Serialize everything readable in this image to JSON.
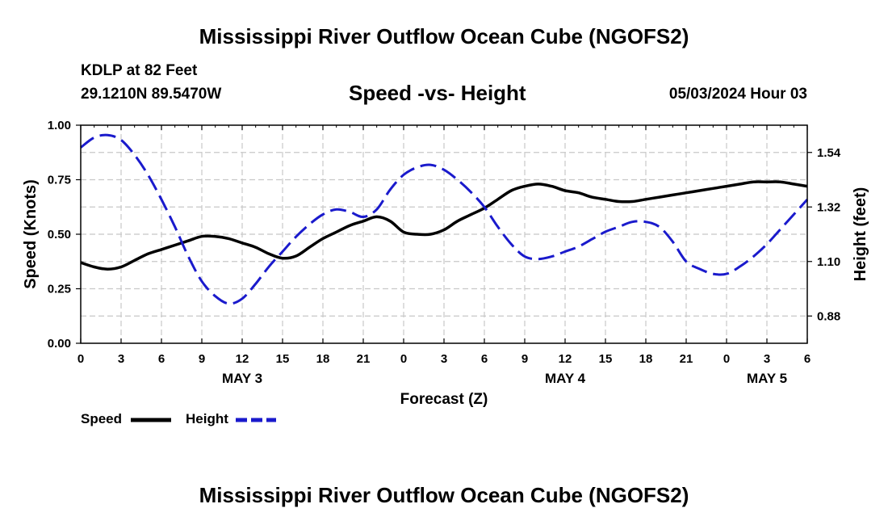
{
  "header": {
    "title": "Mississippi River Outflow Ocean Cube (NGOFS2)",
    "station": "KDLP at 82 Feet",
    "location": "29.1210N  89.5470W",
    "chart_title": "Speed -vs- Height",
    "date": "05/03/2024 Hour 03"
  },
  "footer": {
    "title": "Mississippi River Outflow Ocean Cube (NGOFS2)"
  },
  "chart_data": {
    "type": "line",
    "title": "Speed -vs- Height",
    "xlabel": "Forecast (Z)",
    "ylabel": "Speed (Knots)",
    "y2label": "Height (feet)",
    "x_range_hours": [
      0,
      54
    ],
    "x_tick_hours": [
      0,
      3,
      6,
      9,
      12,
      15,
      18,
      21,
      24,
      27,
      30,
      33,
      36,
      39,
      42,
      45,
      48,
      51,
      54
    ],
    "x_tick_labels": [
      "0",
      "3",
      "6",
      "9",
      "12",
      "15",
      "18",
      "21",
      "0",
      "3",
      "6",
      "9",
      "12",
      "15",
      "18",
      "21",
      "0",
      "3",
      "6"
    ],
    "day_labels": [
      {
        "hour": 12,
        "label": "MAY 3"
      },
      {
        "hour": 36,
        "label": "MAY 4"
      },
      {
        "hour": 51,
        "label": "MAY 5"
      }
    ],
    "ylim": [
      0,
      1
    ],
    "y_ticks": [
      0,
      0.25,
      0.5,
      0.75,
      1.0
    ],
    "y_tick_labels": [
      "0.00",
      "0.25",
      "0.50",
      "0.75",
      "1.00"
    ],
    "y2lim": [
      0.77,
      1.65
    ],
    "y2_ticks": [
      0.88,
      1.1,
      1.32,
      1.54
    ],
    "y2_tick_labels": [
      "0.88",
      "1.10",
      "1.32",
      "1.54"
    ],
    "series": [
      {
        "name": "Speed",
        "axis": "left",
        "color": "#000000",
        "dash": "solid",
        "x": [
          0,
          1,
          2,
          3,
          4,
          5,
          6,
          7,
          8,
          9,
          10,
          11,
          12,
          13,
          14,
          15,
          16,
          17,
          18,
          19,
          20,
          21,
          22,
          23,
          24,
          25,
          26,
          27,
          28,
          29,
          30,
          31,
          32,
          33,
          34,
          35,
          36,
          37,
          38,
          39,
          40,
          41,
          42,
          43,
          44,
          45,
          46,
          47,
          48,
          49,
          50,
          51,
          52,
          53,
          54
        ],
        "values": [
          0.37,
          0.35,
          0.34,
          0.35,
          0.38,
          0.41,
          0.43,
          0.45,
          0.47,
          0.49,
          0.49,
          0.48,
          0.46,
          0.44,
          0.41,
          0.39,
          0.4,
          0.44,
          0.48,
          0.51,
          0.54,
          0.56,
          0.58,
          0.56,
          0.51,
          0.5,
          0.5,
          0.52,
          0.56,
          0.59,
          0.62,
          0.66,
          0.7,
          0.72,
          0.73,
          0.72,
          0.7,
          0.69,
          0.67,
          0.66,
          0.65,
          0.65,
          0.66,
          0.67,
          0.68,
          0.69,
          0.7,
          0.71,
          0.72,
          0.73,
          0.74,
          0.74,
          0.74,
          0.73,
          0.72
        ]
      },
      {
        "name": "Height",
        "axis": "right",
        "color": "#1a1acc",
        "dash": "dashed",
        "x": [
          0,
          1,
          2,
          3,
          4,
          5,
          6,
          7,
          8,
          9,
          10,
          11,
          12,
          13,
          14,
          15,
          16,
          17,
          18,
          19,
          20,
          21,
          22,
          23,
          24,
          25,
          26,
          27,
          28,
          29,
          30,
          31,
          32,
          33,
          34,
          35,
          36,
          37,
          38,
          39,
          40,
          41,
          42,
          43,
          44,
          45,
          46,
          47,
          48,
          49,
          50,
          51,
          52,
          53,
          54
        ],
        "values": [
          1.56,
          1.6,
          1.61,
          1.59,
          1.53,
          1.45,
          1.35,
          1.24,
          1.12,
          1.02,
          0.96,
          0.93,
          0.95,
          1.01,
          1.08,
          1.14,
          1.2,
          1.25,
          1.29,
          1.31,
          1.3,
          1.28,
          1.31,
          1.39,
          1.45,
          1.48,
          1.49,
          1.47,
          1.43,
          1.38,
          1.32,
          1.24,
          1.17,
          1.12,
          1.11,
          1.12,
          1.14,
          1.16,
          1.19,
          1.22,
          1.24,
          1.26,
          1.26,
          1.24,
          1.18,
          1.1,
          1.07,
          1.05,
          1.05,
          1.08,
          1.12,
          1.17,
          1.23,
          1.29,
          1.35
        ]
      }
    ]
  },
  "legend": {
    "speed_label": "Speed",
    "height_label": "Height"
  }
}
